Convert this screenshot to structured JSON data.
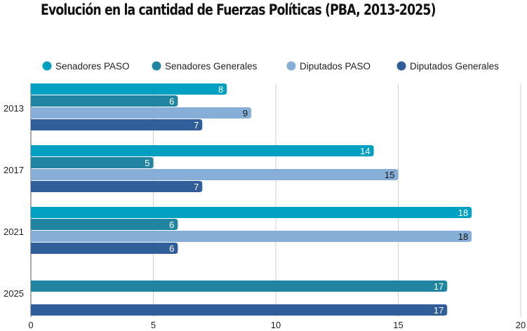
{
  "chart_data": {
    "type": "bar",
    "orientation": "horizontal",
    "title": "Evolución en la cantidad de Fuerzas Políticas (PBA, 2013-2025)",
    "categories": [
      "2013",
      "2017",
      "2021",
      "2025"
    ],
    "series": [
      {
        "name": "Senadores PASO",
        "color": "#00A0C2",
        "values": [
          8,
          14,
          18,
          null
        ]
      },
      {
        "name": "Senadores Generales",
        "color": "#2185A1",
        "values": [
          6,
          5,
          6,
          17
        ]
      },
      {
        "name": "Diputados PASO",
        "color": "#87AED6",
        "values": [
          9,
          15,
          18,
          null
        ]
      },
      {
        "name": "Diputados Generales",
        "color": "#2F5E99",
        "values": [
          7,
          7,
          6,
          17
        ]
      }
    ],
    "xlim": [
      0,
      20
    ],
    "xticks": [
      "0",
      "5",
      "10",
      "15",
      "20"
    ],
    "grid": true,
    "legend_position": "top",
    "data_labels": true
  }
}
